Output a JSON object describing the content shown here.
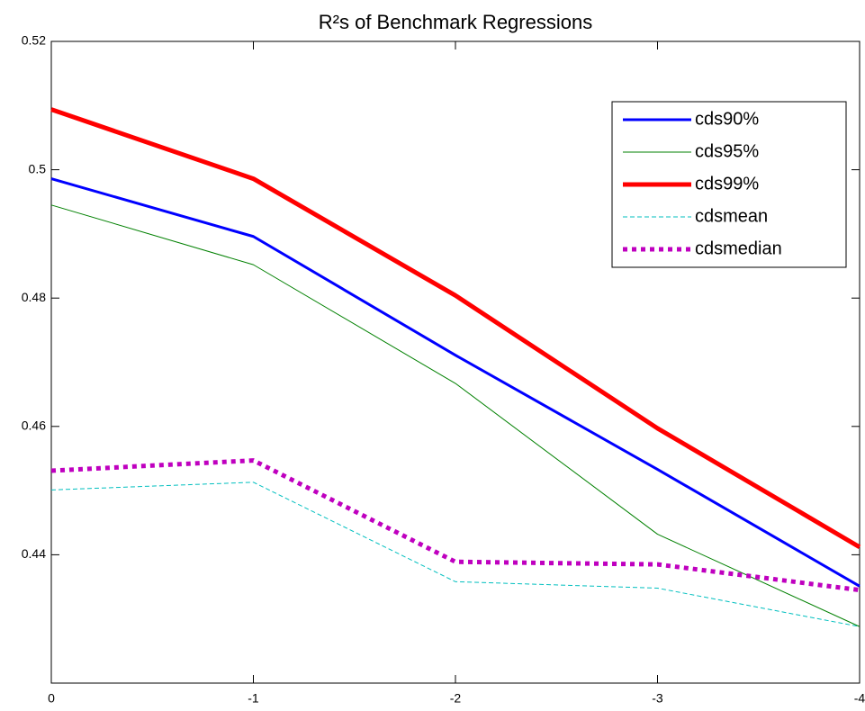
{
  "chart_data": {
    "type": "line",
    "title": "R²s of Benchmark Regressions",
    "x": [
      0,
      -1,
      -2,
      -3,
      -4
    ],
    "xlim": [
      0,
      -4
    ],
    "xticks": [
      0,
      -1,
      -2,
      -3,
      -4
    ],
    "ylim": [
      0.42,
      0.52
    ],
    "yticks": [
      0.44,
      0.46,
      0.48,
      0.5,
      0.52
    ],
    "legend": "upper right",
    "series": [
      {
        "name": "cds90%",
        "color": "#0000ff",
        "line_style": "solid",
        "line_width": 3,
        "values": [
          0.4986,
          0.4896,
          0.4711,
          0.4533,
          0.4351
        ]
      },
      {
        "name": "cds95%",
        "color": "#008000",
        "line_style": "solid",
        "line_width": 1,
        "values": [
          0.4945,
          0.4852,
          0.4667,
          0.4432,
          0.4288
        ]
      },
      {
        "name": "cds99%",
        "color": "#ff0000",
        "line_style": "solid",
        "line_width": 5,
        "values": [
          0.5094,
          0.4986,
          0.4804,
          0.4597,
          0.4412
        ]
      },
      {
        "name": "cdsmean",
        "color": "#00bfbf",
        "line_style": "dashed",
        "line_width": 1,
        "values": [
          0.4501,
          0.4513,
          0.4358,
          0.4348,
          0.4288
        ]
      },
      {
        "name": "cdsmedian",
        "color": "#bf00bf",
        "line_style": "dotted",
        "line_width": 5,
        "values": [
          0.4531,
          0.4547,
          0.4389,
          0.4385,
          0.4345
        ]
      }
    ]
  }
}
